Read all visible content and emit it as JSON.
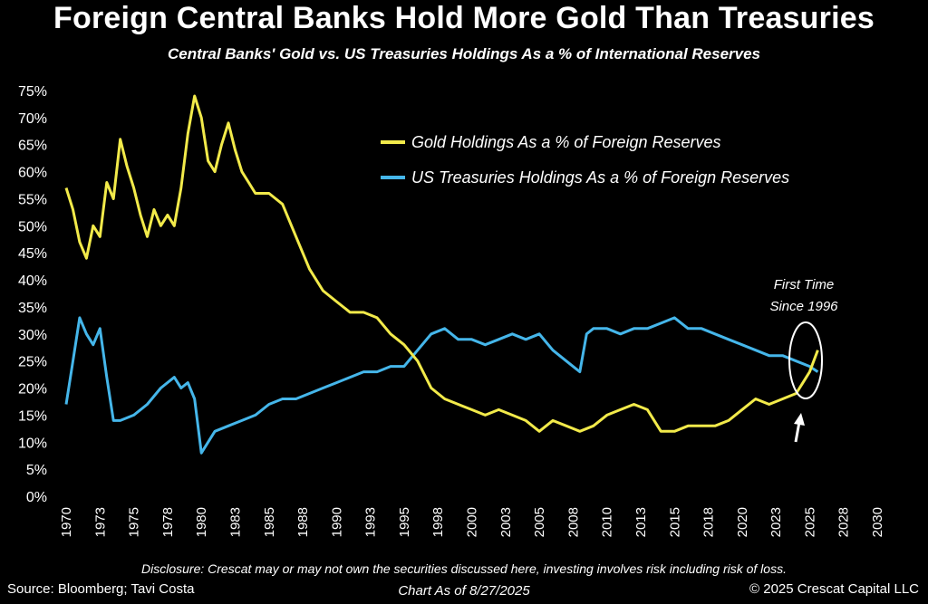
{
  "header": {
    "title": "Foreign Central Banks Hold More Gold Than Treasuries",
    "subtitle": "Central Banks' Gold vs. US Treasuries Holdings As a % of International Reserves"
  },
  "footer": {
    "disclosure": "Disclosure: Crescat may or may not own the securities discussed here, investing involves risk including risk of loss.",
    "source": "Source: Bloomberg; Tavi Costa",
    "as_of": "Chart As of 8/27/2025",
    "copyright": "© 2025 Crescat Capital LLC"
  },
  "annotation": {
    "line1": "First Time",
    "line2": "Since 1996"
  },
  "chart_data": {
    "type": "line",
    "title": "Central Banks' Gold vs. US Treasuries Holdings As a % of International Reserves",
    "xlabel": "",
    "ylabel": "",
    "xlim": [
      1970,
      2030
    ],
    "ylim": [
      0,
      75
    ],
    "y_ticks": [
      0,
      5,
      10,
      15,
      20,
      25,
      30,
      35,
      40,
      45,
      50,
      55,
      60,
      65,
      70,
      75
    ],
    "y_tick_labels": [
      "0%",
      "5%",
      "10%",
      "15%",
      "20%",
      "25%",
      "30%",
      "35%",
      "40%",
      "45%",
      "50%",
      "55%",
      "60%",
      "65%",
      "70%",
      "75%"
    ],
    "x_tick_labels": [
      "1970",
      "1973",
      "1975",
      "1978",
      "1980",
      "1983",
      "1985",
      "1988",
      "1990",
      "1993",
      "1995",
      "1998",
      "2000",
      "2003",
      "2005",
      "2008",
      "2010",
      "2013",
      "2015",
      "2018",
      "2020",
      "2023",
      "2025",
      "2028",
      "2030"
    ],
    "grid": false,
    "legend_position": "top-right",
    "colors": {
      "gold": "#f2ea4a",
      "treasuries": "#45b6ea",
      "background": "#000000"
    },
    "series": [
      {
        "name": "Gold Holdings As a % of Foreign Reserves",
        "color": "#f2ea4a",
        "x": [
          1970.0,
          1970.5,
          1971.0,
          1971.5,
          1972.0,
          1972.5,
          1973.0,
          1973.5,
          1974.0,
          1974.5,
          1975.0,
          1975.5,
          1976.0,
          1976.5,
          1977.0,
          1977.5,
          1978.0,
          1978.5,
          1979.0,
          1979.5,
          1980.0,
          1980.5,
          1981.0,
          1981.5,
          1982.0,
          1982.5,
          1983.0,
          1983.5,
          1984.0,
          1985.0,
          1986.0,
          1987.0,
          1988.0,
          1989.0,
          1990.0,
          1991.0,
          1992.0,
          1993.0,
          1994.0,
          1995.0,
          1996.0,
          1997.0,
          1998.0,
          1999.0,
          2000.0,
          2001.0,
          2002.0,
          2003.0,
          2004.0,
          2005.0,
          2006.0,
          2007.0,
          2008.0,
          2009.0,
          2010.0,
          2011.0,
          2012.0,
          2013.0,
          2014.0,
          2015.0,
          2016.0,
          2017.0,
          2018.0,
          2019.0,
          2020.0,
          2021.0,
          2022.0,
          2023.0,
          2024.0,
          2024.5,
          2025.0,
          2025.6
        ],
        "values": [
          57,
          53,
          47,
          44,
          50,
          48,
          58,
          55,
          66,
          61,
          57,
          52,
          48,
          53,
          50,
          52,
          50,
          57,
          67,
          74,
          70,
          62,
          60,
          65,
          69,
          64,
          60,
          58,
          56,
          56,
          54,
          48,
          42,
          38,
          36,
          34,
          34,
          33,
          30,
          28,
          25,
          20,
          18,
          17,
          16,
          15,
          16,
          15,
          14,
          12,
          14,
          13,
          12,
          13,
          15,
          16,
          17,
          16,
          12,
          12,
          13,
          13,
          13,
          14,
          16,
          18,
          17,
          18,
          19,
          21,
          23,
          27
        ]
      },
      {
        "name": "US Treasuries Holdings As a % of Foreign Reserves",
        "color": "#45b6ea",
        "x": [
          1970.0,
          1970.5,
          1971.0,
          1971.5,
          1972.0,
          1972.5,
          1973.0,
          1973.5,
          1974.0,
          1975.0,
          1976.0,
          1977.0,
          1978.0,
          1978.5,
          1979.0,
          1979.5,
          1980.0,
          1980.5,
          1981.0,
          1982.0,
          1983.0,
          1984.0,
          1985.0,
          1986.0,
          1987.0,
          1988.0,
          1989.0,
          1990.0,
          1991.0,
          1992.0,
          1993.0,
          1994.0,
          1995.0,
          1996.0,
          1997.0,
          1998.0,
          1999.0,
          2000.0,
          2001.0,
          2002.0,
          2003.0,
          2004.0,
          2005.0,
          2006.0,
          2007.0,
          2008.0,
          2008.5,
          2009.0,
          2010.0,
          2011.0,
          2012.0,
          2013.0,
          2014.0,
          2015.0,
          2016.0,
          2017.0,
          2018.0,
          2019.0,
          2020.0,
          2021.0,
          2022.0,
          2023.0,
          2024.0,
          2025.0,
          2025.6
        ],
        "values": [
          17,
          25,
          33,
          30,
          28,
          31,
          22,
          14,
          14,
          15,
          17,
          20,
          22,
          20,
          21,
          18,
          8,
          10,
          12,
          13,
          14,
          15,
          17,
          18,
          18,
          19,
          20,
          21,
          22,
          23,
          23,
          24,
          24,
          27,
          30,
          31,
          29,
          29,
          28,
          29,
          30,
          29,
          30,
          27,
          25,
          23,
          30,
          31,
          31,
          30,
          31,
          31,
          32,
          33,
          31,
          31,
          30,
          29,
          28,
          27,
          26,
          26,
          25,
          24,
          23
        ]
      }
    ]
  }
}
